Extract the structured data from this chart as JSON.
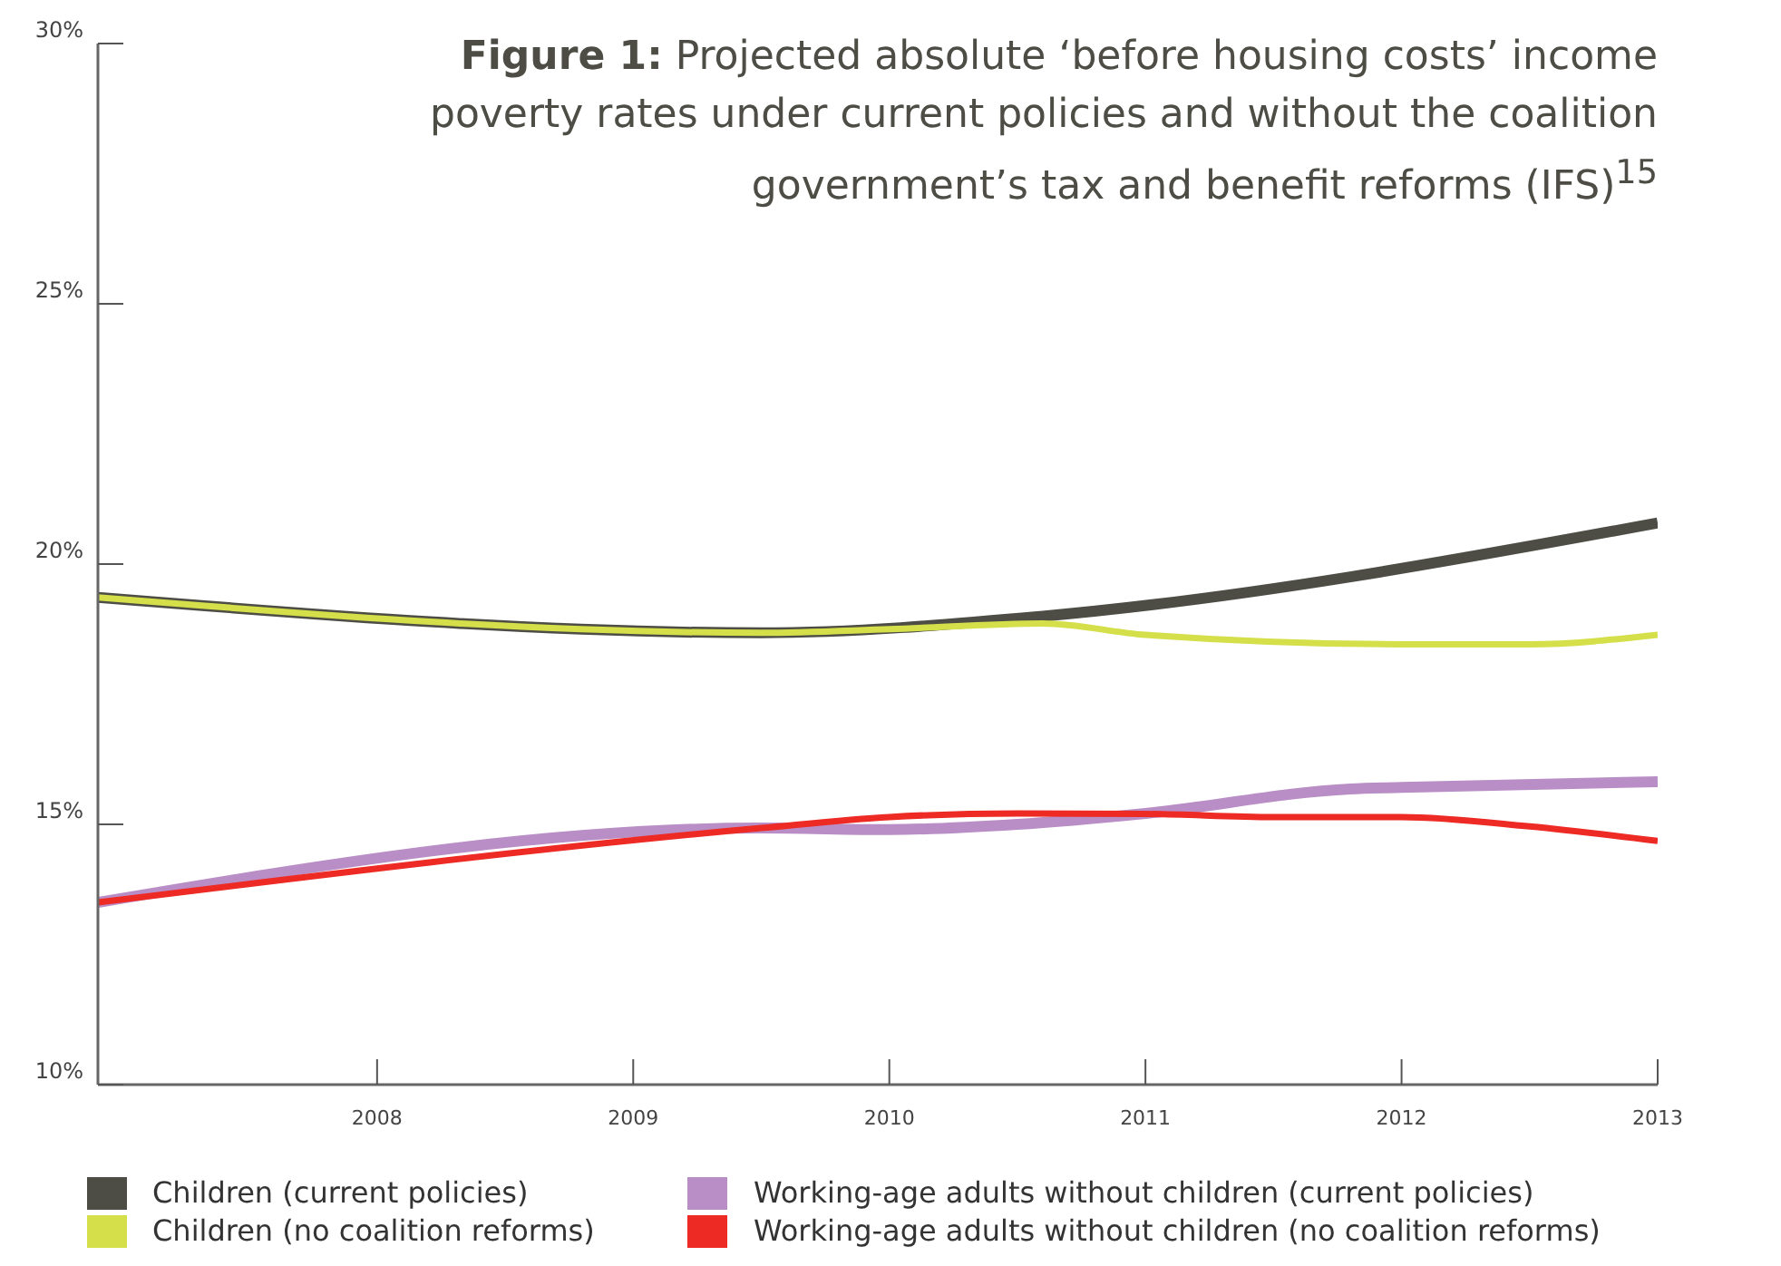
{
  "chart_data": {
    "type": "line",
    "title": "**Figure 1:** Projected absolute ‘before housing costs’ income poverty rates under current policies and without the coalition government’s tax and benefit reforms (IFS)$^{15}$",
    "xlim": [
      2006.91,
      2013
    ],
    "xticks": [
      2008,
      2009,
      2010,
      2011,
      2012,
      2013
    ],
    "ylim": [
      10,
      30
    ],
    "yticks": [
      {
        "value": 10,
        "label": "10%"
      },
      {
        "value": 15,
        "label": "15%"
      },
      {
        "value": 20,
        "label": "20%"
      },
      {
        "value": 25,
        "label": "25%"
      },
      {
        "value": 30,
        "label": "30%"
      }
    ],
    "grid": false,
    "legend": "bottom",
    "marker": "none",
    "line_style": "solid",
    "series": [
      {
        "name": "Children (current policies)",
        "color": "#4d4d45",
        "x": [
          2006.91,
          2009.5,
          2010.6,
          2013
        ],
        "values": [
          19.36,
          18.68,
          19.0,
          20.79
        ]
      },
      {
        "name": "Children (no coalition reforms)",
        "color": "#d4df4a",
        "x": [
          2006.91,
          2009.5,
          2010,
          2010.6,
          2011,
          2012,
          2012.5,
          2013
        ],
        "values": [
          19.36,
          18.68,
          18.75,
          18.86,
          18.64,
          18.46,
          18.46,
          18.64
        ]
      },
      {
        "name": "Working-age adults without children (current policies)",
        "color": "#b98ec6",
        "x": [
          2006.91,
          2009.5,
          2010,
          2010.5,
          2011,
          2011.8,
          2012,
          2013
        ],
        "values": [
          13.5,
          14.93,
          14.9,
          15.0,
          15.21,
          15.68,
          15.71,
          15.82
        ]
      },
      {
        "name": "Working-age adults without children (no coalition reforms)",
        "color": "#ee2a24",
        "x": [
          2006.91,
          2009.5,
          2010,
          2010.5,
          2011,
          2011.5,
          2012,
          2012.5,
          2013
        ],
        "values": [
          13.5,
          14.93,
          15.14,
          15.21,
          15.2,
          15.14,
          15.14,
          14.96,
          14.68
        ]
      }
    ]
  }
}
